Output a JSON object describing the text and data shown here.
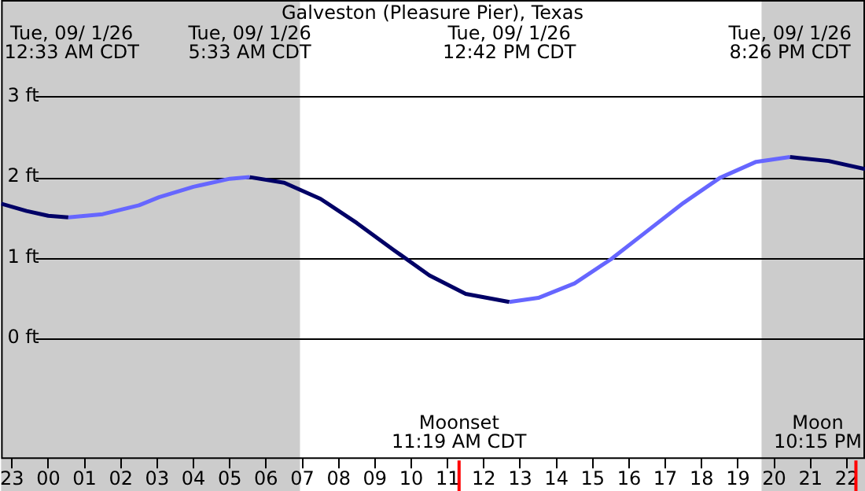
{
  "chart_data": {
    "type": "line",
    "title": "Galveston (Pleasure Pier), Texas",
    "xlim": [
      "--08-31T22:42",
      "--09-01T22:30"
    ],
    "ylim": [
      -1.5,
      4.2
    ],
    "xticks": [
      {
        "value": "--08-31T23:00",
        "label": "23"
      },
      {
        "value": "--09-01T00:00",
        "label": "00"
      },
      {
        "value": "--09-01T01:00",
        "label": "01"
      },
      {
        "value": "--09-01T02:00",
        "label": "02"
      },
      {
        "value": "--09-01T03:00",
        "label": "03"
      },
      {
        "value": "--09-01T04:00",
        "label": "04"
      },
      {
        "value": "--09-01T05:00",
        "label": "05"
      },
      {
        "value": "--09-01T06:00",
        "label": "06"
      },
      {
        "value": "--09-01T07:00",
        "label": "07"
      },
      {
        "value": "--09-01T08:00",
        "label": "08"
      },
      {
        "value": "--09-01T09:00",
        "label": "09"
      },
      {
        "value": "--09-01T10:00",
        "label": "10"
      },
      {
        "value": "--09-01T11:00",
        "label": "11"
      },
      {
        "value": "--09-01T12:00",
        "label": "12"
      },
      {
        "value": "--09-01T13:00",
        "label": "13"
      },
      {
        "value": "--09-01T14:00",
        "label": "14"
      },
      {
        "value": "--09-01T15:00",
        "label": "15"
      },
      {
        "value": "--09-01T16:00",
        "label": "16"
      },
      {
        "value": "--09-01T17:00",
        "label": "17"
      },
      {
        "value": "--09-01T18:00",
        "label": "18"
      },
      {
        "value": "--09-01T19:00",
        "label": "19"
      },
      {
        "value": "--09-01T20:00",
        "label": "20"
      },
      {
        "value": "--09-01T21:00",
        "label": "21"
      },
      {
        "value": "--09-01T22:00",
        "label": "22"
      }
    ],
    "yticks": [
      {
        "value": 0,
        "label": "0 ft"
      },
      {
        "value": 1,
        "label": "1 ft"
      },
      {
        "value": 2,
        "label": "2 ft"
      },
      {
        "value": 3,
        "label": "3 ft"
      }
    ],
    "grid": "y",
    "legend": false,
    "marker": "none",
    "line_style": "solid",
    "series": [
      {
        "color": "#000066",
        "x": [
          "--08-31T22:42",
          "--08-31T23:24",
          "--09-01T00:00",
          "--09-01T00:33",
          "--09-01T03:00",
          "--09-01T05:33",
          "--09-01T06:30",
          "--09-01T07:30",
          "--09-01T08:30",
          "--09-01T09:30",
          "--09-01T10:30",
          "--09-01T11:30",
          "--09-01T12:42",
          "--09-01T16:00",
          "--09-01T20:26",
          "--09-01T21:30",
          "--09-01T22:30"
        ],
        "values": [
          1.67,
          1.58,
          1.52,
          1.5,
          null,
          2.0,
          1.93,
          1.73,
          1.43,
          1.1,
          0.78,
          0.55,
          0.45,
          null,
          2.25,
          2.2,
          2.1
        ]
      },
      {
        "color": "#6666ff",
        "x": [
          "--09-01T00:33",
          "--09-01T01:30",
          "--09-01T02:30",
          "--09-01T03:03",
          "--09-01T04:00",
          "--09-01T05:00",
          "--09-01T05:33",
          "--09-01T09:00",
          "--09-01T12:42",
          "--09-01T13:30",
          "--09-01T14:30",
          "--09-01T15:30",
          "--09-01T16:30",
          "--09-01T17:30",
          "--09-01T18:30",
          "--09-01T19:30",
          "--09-01T20:26"
        ],
        "values": [
          1.5,
          1.54,
          1.65,
          1.75,
          1.88,
          1.98,
          2.0,
          null,
          0.45,
          0.5,
          0.68,
          0.98,
          1.33,
          1.68,
          1.99,
          2.19,
          2.25
        ]
      }
    ],
    "bands": [
      {
        "axis": "x",
        "from": "--08-31T22:42",
        "to": "--09-01T06:56",
        "color": "#cccccc"
      },
      {
        "axis": "x",
        "from": "--09-01T19:39",
        "to": "--09-01T22:30",
        "color": "#cccccc"
      }
    ],
    "ref_lines": [
      {
        "axis": "x",
        "value": "--09-01T11:19",
        "label": "Moonset\n11:19 AM CDT",
        "color": "#ff0000"
      },
      {
        "axis": "x",
        "value": "--09-01T22:15",
        "label": "Moon\n10:15 PM",
        "color": "#ff0000"
      }
    ],
    "annotations": [
      "Tue, 09/ 1/26\n12:33 AM CDT",
      "Tue, 09/ 1/26\n5:33 AM CDT",
      "Tue, 09/ 1/26\n12:42 PM CDT",
      "Tue, 09/ 1/26\n8:26 PM CDT"
    ]
  }
}
